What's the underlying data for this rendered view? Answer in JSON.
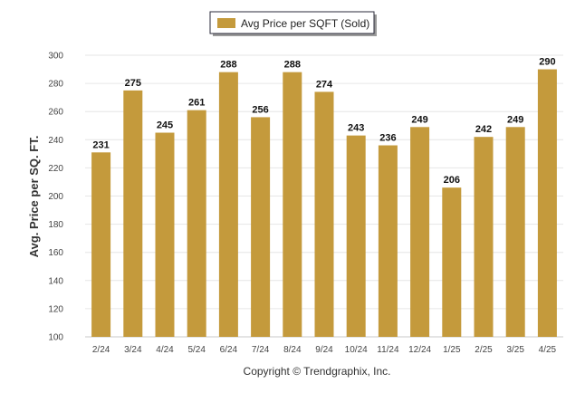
{
  "chart_data": {
    "type": "bar",
    "categories": [
      "2/24",
      "3/24",
      "4/24",
      "5/24",
      "6/24",
      "7/24",
      "8/24",
      "9/24",
      "10/24",
      "11/24",
      "12/24",
      "1/25",
      "2/25",
      "3/25",
      "4/25"
    ],
    "series": [
      {
        "name": "Avg Price per SQFT (Sold)",
        "values": [
          231,
          275,
          245,
          261,
          288,
          256,
          288,
          274,
          243,
          236,
          249,
          206,
          242,
          249,
          290
        ]
      }
    ],
    "ylabel": "Avg. Price per SQ. FT.",
    "xlabel": "",
    "ylim": [
      100,
      300
    ],
    "yticks": [
      100,
      120,
      140,
      160,
      180,
      200,
      220,
      240,
      260,
      280,
      300
    ],
    "grid": true,
    "legend_position": "top-center",
    "data_labels": true
  },
  "footer": {
    "copyright": "Copyright © Trendgraphix, Inc."
  },
  "colors": {
    "bar": "#c49a3c",
    "grid": "#e6e6e6"
  }
}
